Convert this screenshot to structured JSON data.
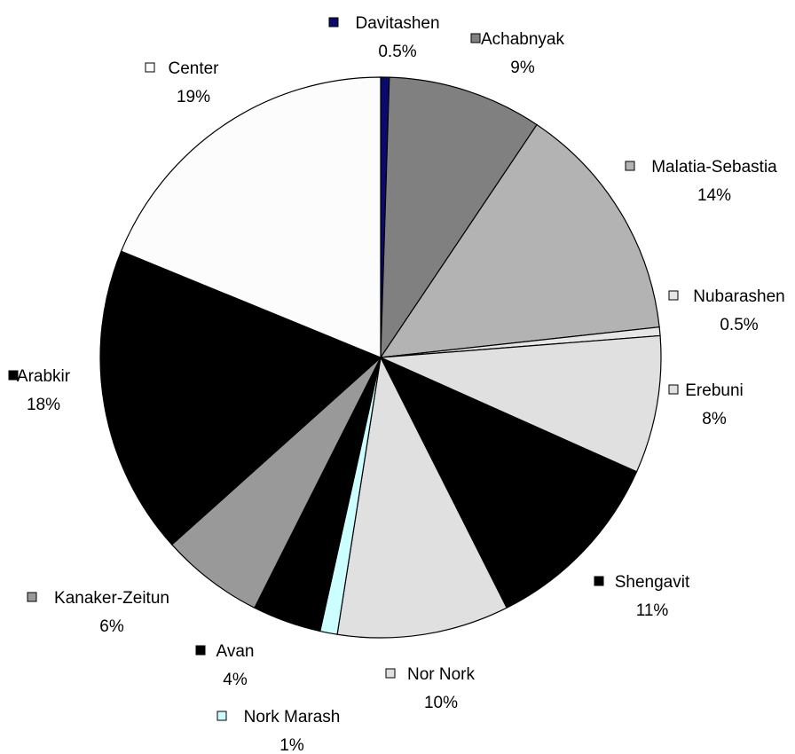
{
  "chart_data": {
    "type": "pie",
    "title": "",
    "slices": [
      {
        "label": "Davitashen",
        "value": 0.5,
        "pct_label": "0.5%",
        "color": "#0a0a6e"
      },
      {
        "label": "Achabnyak",
        "value": 9,
        "pct_label": "9%",
        "color": "#808080"
      },
      {
        "label": "Malatia-Sebastia",
        "value": 14,
        "pct_label": "14%",
        "color": "#b3b3b3"
      },
      {
        "label": "Nubarashen",
        "value": 0.5,
        "pct_label": "0.5%",
        "color": "#e6e6e6"
      },
      {
        "label": "Erebuni",
        "value": 8,
        "pct_label": "8%",
        "color": "#e0e0e0"
      },
      {
        "label": "Shengavit",
        "value": 11,
        "pct_label": "11%",
        "color": "#000000"
      },
      {
        "label": "Nor Nork",
        "value": 10,
        "pct_label": "10%",
        "color": "#e0e0e0"
      },
      {
        "label": "Nork Marash",
        "value": 1,
        "pct_label": "1%",
        "color": "#ccffff"
      },
      {
        "label": "Avan",
        "value": 4,
        "pct_label": "4%",
        "color": "#000000"
      },
      {
        "label": "Kanaker-Zeitun",
        "value": 6,
        "pct_label": "6%",
        "color": "#999999"
      },
      {
        "label": "Arabkir",
        "value": 18,
        "pct_label": "18%",
        "color": "#000000"
      },
      {
        "label": "Center",
        "value": 19,
        "pct_label": "19%",
        "color": "#fcfcfc"
      }
    ]
  }
}
